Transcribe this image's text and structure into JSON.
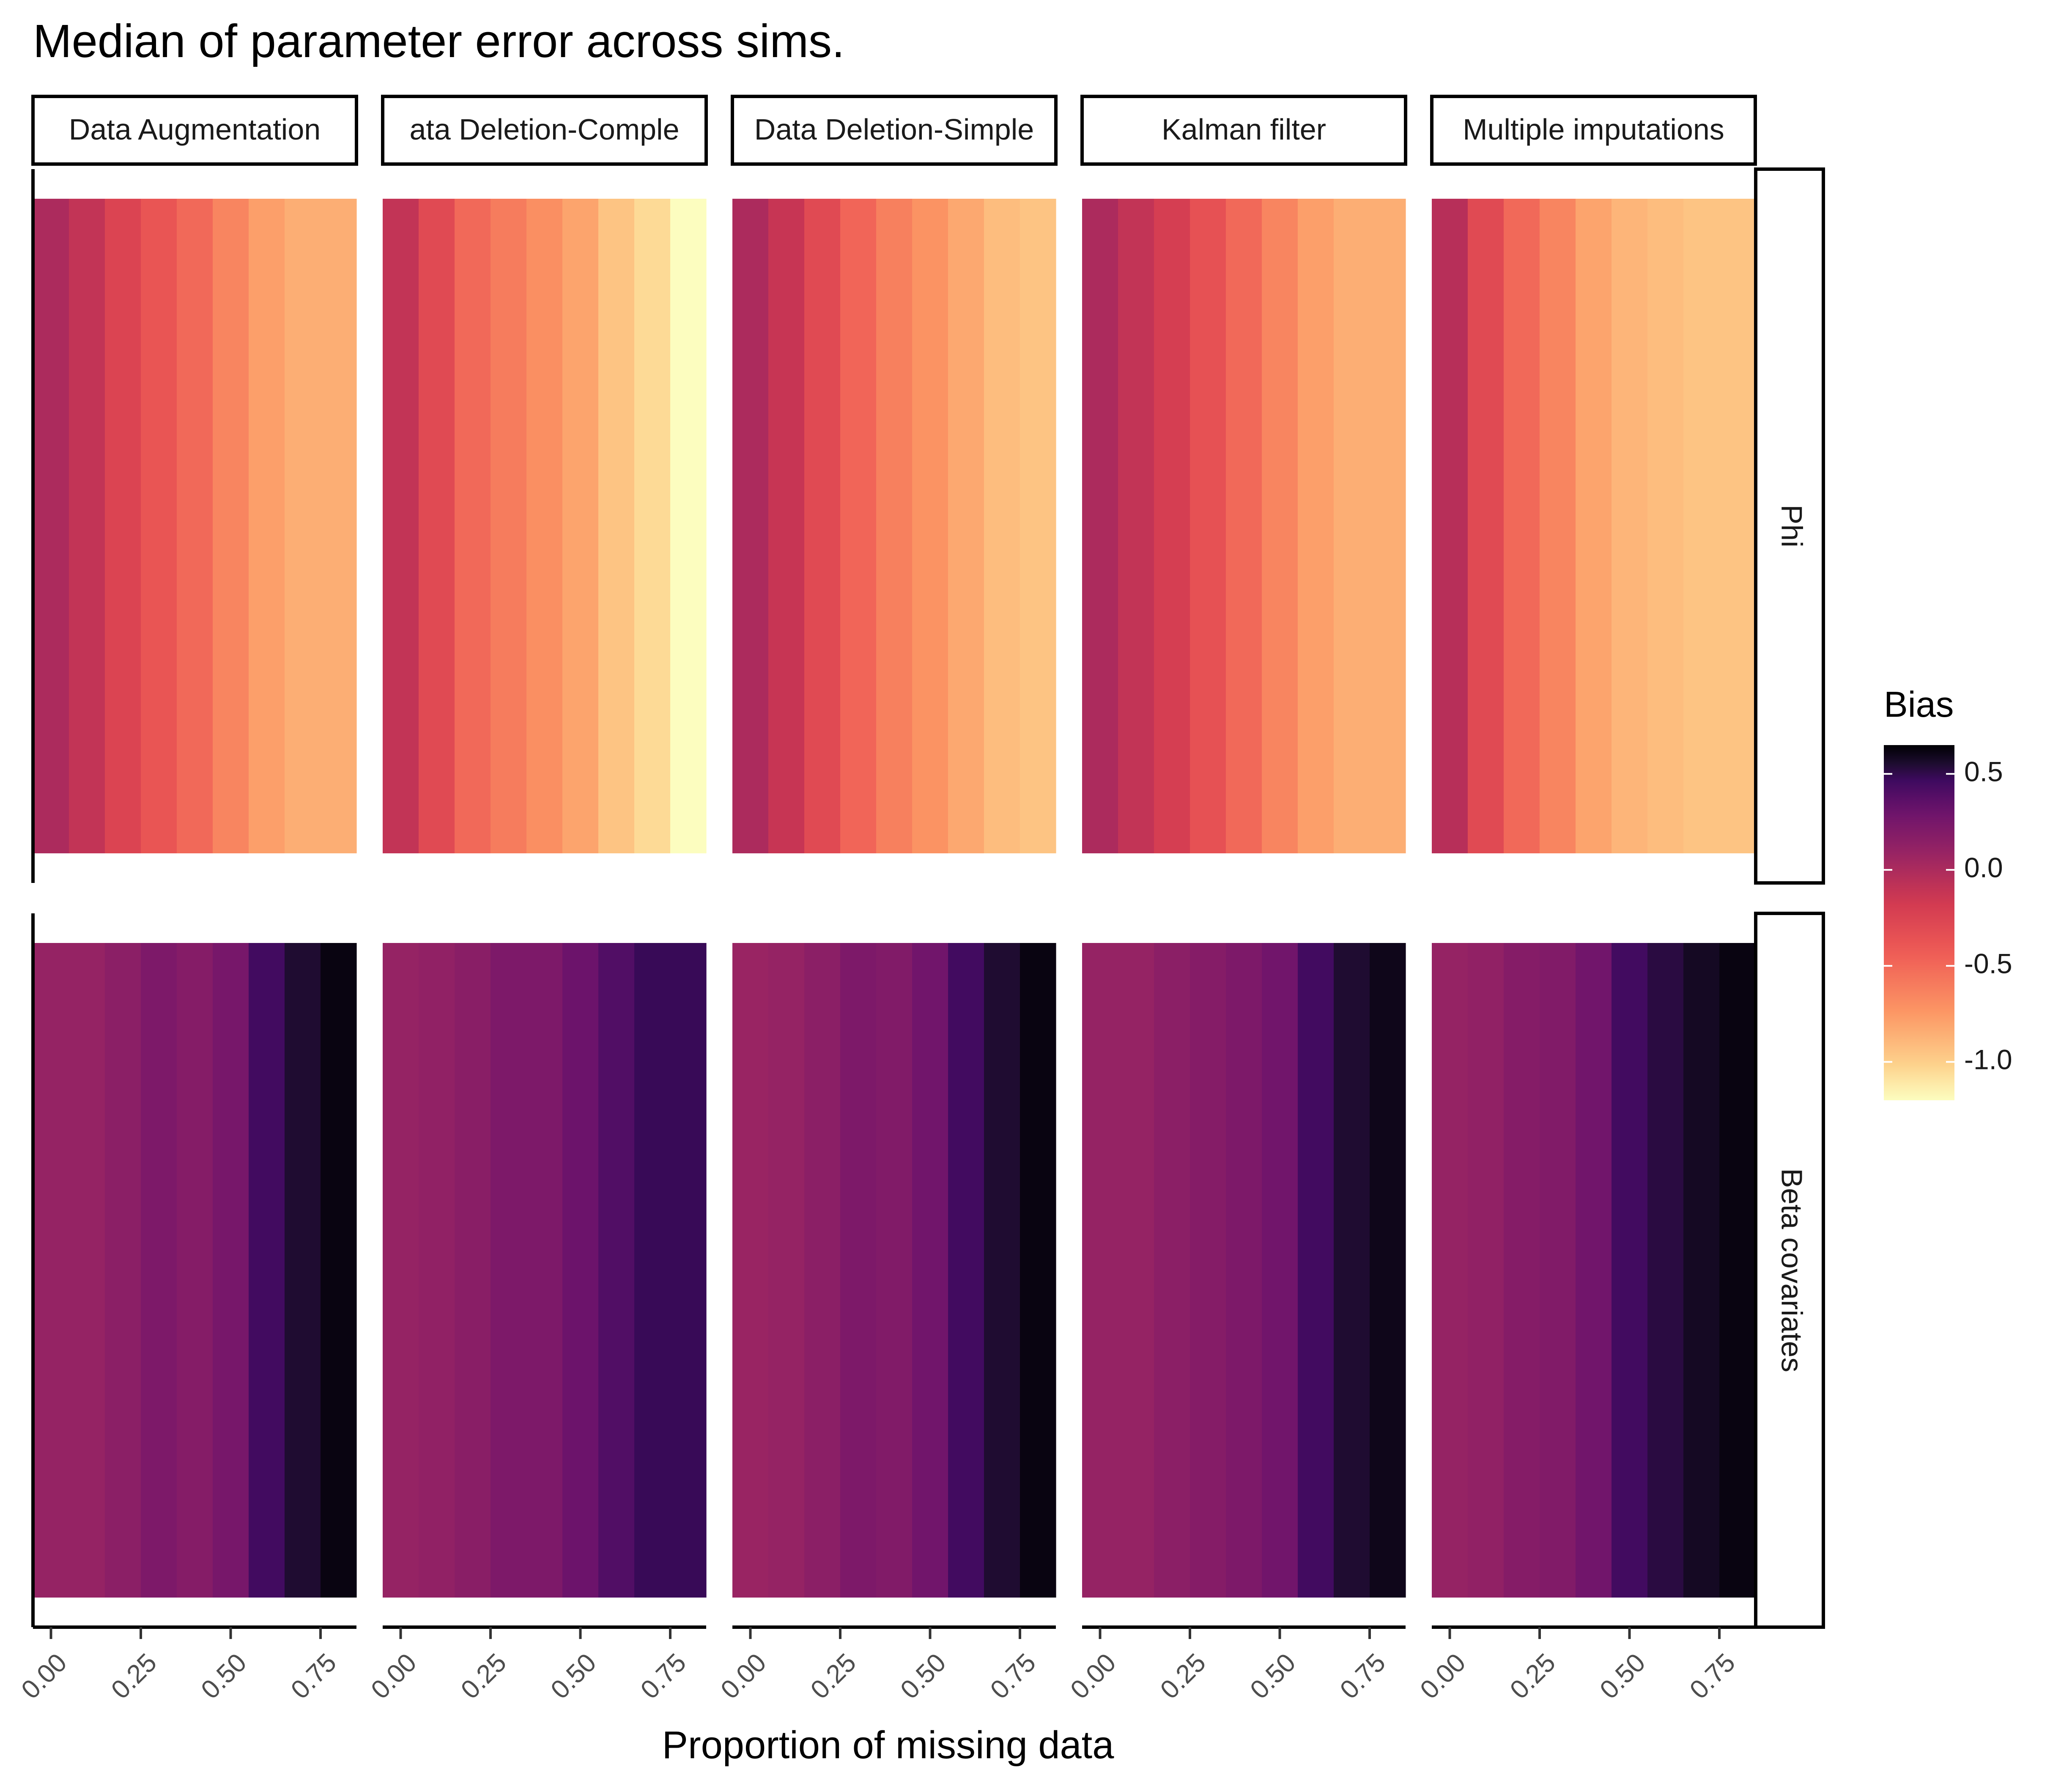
{
  "chart_data": {
    "type": "heatmap",
    "title": "Median of parameter error across sims.",
    "xlabel": "Proportion of missing data",
    "ylabel": "",
    "x_tick_labels": [
      "0.00",
      "0.25",
      "0.50",
      "0.75"
    ],
    "x_tick_values": [
      0,
      0.25,
      0.5,
      0.75
    ],
    "x_values": [
      0,
      0.1,
      0.2,
      0.3,
      0.4,
      0.5,
      0.6,
      0.7,
      0.8
    ],
    "xlim": [
      -0.05,
      0.85
    ],
    "columns": [
      "Data Augmentation",
      "ata Deletion-Comple",
      "Data Deletion-Simple",
      "Kalman filter",
      "Multiple imputations"
    ],
    "rows": [
      "Phi",
      "Beta covariates"
    ],
    "legend": {
      "title": "Bias",
      "ticks": [
        "0.5",
        "0.0",
        "-0.5",
        "-1.0"
      ],
      "tick_values": [
        0.5,
        0,
        -0.5,
        -1.0
      ],
      "range": [
        -1.2,
        0.65
      ],
      "position": "right"
    },
    "grid": false,
    "colormap": "magma",
    "panels": [
      {
        "column": "Data Augmentation",
        "row": "Phi",
        "values": [
          0.0,
          -0.1,
          -0.25,
          -0.38,
          -0.5,
          -0.65,
          -0.78,
          -0.85,
          -0.85
        ]
      },
      {
        "column": "ata Deletion-Comple",
        "row": "Phi",
        "values": [
          -0.1,
          -0.3,
          -0.5,
          -0.6,
          -0.7,
          -0.8,
          -0.95,
          -1.05,
          -1.2
        ]
      },
      {
        "column": "Data Deletion-Simple",
        "row": "Phi",
        "values": [
          0.0,
          -0.12,
          -0.3,
          -0.48,
          -0.62,
          -0.72,
          -0.82,
          -0.92,
          -0.95
        ]
      },
      {
        "column": "Kalman filter",
        "row": "Phi",
        "values": [
          0.0,
          -0.1,
          -0.2,
          -0.35,
          -0.5,
          -0.65,
          -0.78,
          -0.85,
          -0.85
        ]
      },
      {
        "column": "Multiple imputations",
        "row": "Phi",
        "values": [
          -0.05,
          -0.3,
          -0.5,
          -0.65,
          -0.8,
          -0.88,
          -0.92,
          -0.95,
          -0.95
        ]
      },
      {
        "column": "Data Augmentation",
        "row": "Beta covariates",
        "values": [
          0.1,
          0.1,
          0.15,
          0.22,
          0.18,
          0.25,
          0.45,
          0.55,
          0.62
        ]
      },
      {
        "column": "ata Deletion-Comple",
        "row": "Beta covariates",
        "values": [
          0.1,
          0.12,
          0.16,
          0.22,
          0.22,
          0.3,
          0.4,
          0.48,
          0.48
        ]
      },
      {
        "column": "Data Deletion-Simple",
        "row": "Beta covariates",
        "values": [
          0.08,
          0.1,
          0.15,
          0.22,
          0.2,
          0.28,
          0.45,
          0.55,
          0.62
        ]
      },
      {
        "column": "Kalman filter",
        "row": "Beta covariates",
        "values": [
          0.1,
          0.1,
          0.15,
          0.18,
          0.22,
          0.28,
          0.45,
          0.55,
          0.6
        ]
      },
      {
        "column": "Multiple imputations",
        "row": "Beta covariates",
        "values": [
          0.1,
          0.12,
          0.18,
          0.2,
          0.28,
          0.45,
          0.52,
          0.58,
          0.62
        ]
      }
    ]
  }
}
